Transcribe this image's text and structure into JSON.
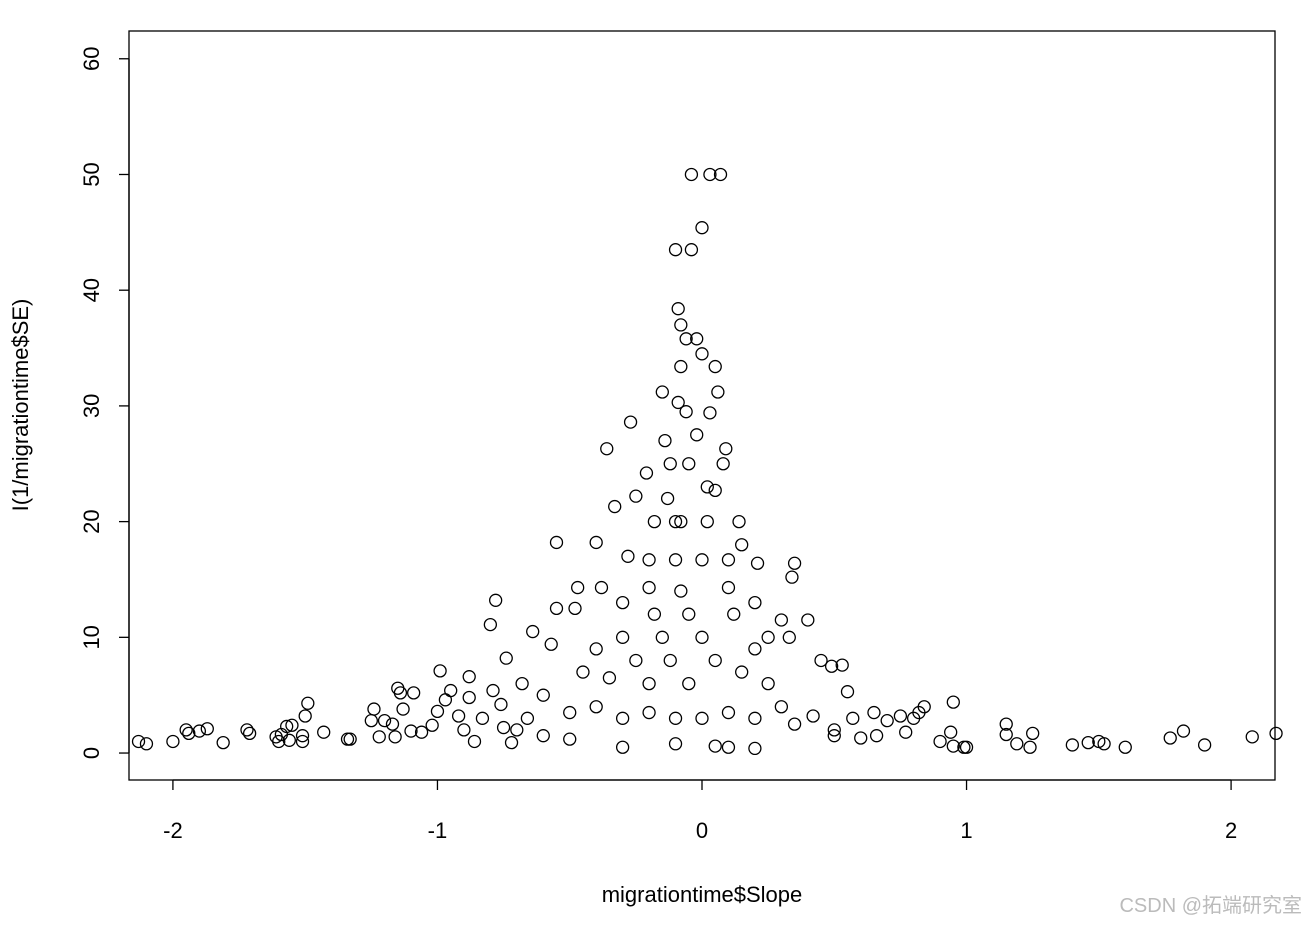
{
  "chart_data": {
    "type": "scatter",
    "x_label": "migrationtime$Slope",
    "y_label": "I(1/migrationtime$SE)",
    "watermark": "CSDN @拓端研究室",
    "color": "#000000",
    "xlim": [
      -2.166,
      2.166
    ],
    "ylim": [
      -2.33,
      62.4
    ],
    "xticks": [
      -2,
      -1,
      0,
      1,
      2
    ],
    "yticks": [
      0,
      10,
      20,
      30,
      40,
      50,
      60
    ],
    "x": [
      -2.13,
      -2.1,
      -2.0,
      -1.95,
      -1.94,
      -1.9,
      -1.87,
      -1.81,
      -1.72,
      -1.71,
      -1.61,
      -1.6,
      -1.59,
      -1.57,
      -1.56,
      -1.55,
      -1.51,
      -1.51,
      -1.5,
      -1.49,
      -1.43,
      -1.34,
      -1.33,
      -1.25,
      -1.24,
      -1.22,
      -1.2,
      -1.17,
      -1.16,
      -1.15,
      -1.14,
      -1.13,
      -1.1,
      -1.09,
      -1.06,
      -1.02,
      -1.0,
      -0.99,
      -0.97,
      -0.95,
      -0.92,
      -0.9,
      -0.88,
      -0.88,
      -0.86,
      -0.83,
      -0.8,
      -0.79,
      -0.78,
      -0.76,
      -0.75,
      -0.74,
      -0.72,
      0.7,
      0.75,
      0.77,
      0.8,
      0.82,
      0.84,
      0.9,
      0.94,
      0.95,
      0.95,
      0.99,
      1.0,
      1.15,
      1.15,
      1.19,
      1.24,
      1.25,
      1.4,
      1.46,
      1.5,
      1.52,
      1.6,
      1.77,
      1.82,
      1.9,
      2.08,
      2.17,
      -0.04,
      0.03,
      0.07,
      0.0,
      -0.1,
      -0.04,
      -0.09,
      -0.08,
      -0.06,
      -0.02,
      0.0,
      -0.08,
      0.05,
      0.06,
      -0.15,
      -0.09,
      0.03,
      -0.27,
      -0.36,
      0.09,
      0.08,
      -0.12,
      -0.05,
      -0.21,
      0.05,
      -0.25,
      -0.33,
      -0.1,
      0.14,
      -0.55,
      -0.4,
      0.21,
      0.35,
      0.34,
      -0.38,
      -0.47,
      -0.2,
      0.1,
      0.3,
      0.4,
      0.33,
      -0.48,
      -0.55,
      -0.64,
      -0.57,
      -0.3,
      -0.15,
      0,
      0.2,
      0.45,
      0.49,
      0.53,
      0.55,
      0.57,
      0.6,
      0.66,
      0.65,
      0.42,
      0.3,
      0.25,
      0.15,
      -0.05,
      -0.2,
      -0.35,
      -0.45,
      -0.6,
      -0.68,
      -0.66,
      -0.5,
      -0.4,
      -0.3,
      -0.2,
      -0.1,
      0,
      0.1,
      0.2,
      0.35,
      0.5,
      -0.7,
      -0.6,
      -0.5,
      -0.3,
      -0.1,
      0.05,
      0.1,
      0.2,
      0.5,
      -0.25,
      -0.12,
      0.05,
      -0.05,
      -0.18,
      0.12,
      -0.1,
      0,
      -0.2,
      0.1,
      -0.08,
      -0.18,
      0.02,
      -0.14,
      -0.02,
      -0.06,
      -0.13,
      0.02,
      -0.3,
      0.2,
      -0.4,
      0.25,
      -0.08,
      -0.28,
      0.15
    ],
    "values": [
      1.0,
      0.8,
      1.0,
      2.0,
      1.7,
      1.9,
      2.1,
      0.9,
      2.0,
      1.7,
      1.4,
      1.0,
      1.6,
      2.3,
      1.1,
      2.4,
      1.0,
      1.5,
      3.2,
      4.3,
      1.8,
      1.2,
      1.2,
      2.8,
      3.8,
      1.4,
      2.8,
      2.5,
      1.4,
      5.6,
      5.2,
      3.8,
      1.9,
      5.2,
      1.8,
      2.4,
      3.6,
      7.1,
      4.6,
      5.4,
      3.2,
      2.0,
      6.6,
      4.8,
      1.0,
      3.0,
      11.1,
      5.4,
      13.2,
      4.2,
      2.2,
      8.2,
      0.9,
      2.8,
      3.2,
      1.8,
      3.0,
      3.5,
      4.0,
      1.0,
      1.8,
      4.4,
      0.6,
      0.5,
      0.5,
      2.5,
      1.6,
      0.8,
      0.5,
      1.7,
      0.7,
      0.9,
      1.0,
      0.8,
      0.5,
      1.3,
      1.9,
      0.7,
      1.4,
      1.7,
      50,
      50,
      50,
      45.4,
      43.5,
      43.5,
      38.4,
      37,
      35.8,
      35.8,
      34.5,
      33.4,
      33.4,
      31.2,
      31.2,
      30.3,
      29.4,
      28.6,
      26.3,
      26.3,
      25,
      25,
      25,
      24.2,
      22.7,
      22.2,
      21.3,
      20,
      20,
      18.2,
      18.2,
      16.4,
      16.4,
      15.2,
      14.3,
      14.3,
      14.3,
      14.3,
      11.5,
      11.5,
      10,
      12.5,
      12.5,
      10.5,
      9.4,
      10,
      10,
      10,
      9,
      8,
      7.5,
      7.6,
      5.3,
      3,
      1.3,
      1.5,
      3.5,
      3.2,
      4,
      6,
      7,
      6,
      6,
      6.5,
      7,
      5,
      6,
      3,
      3.5,
      4,
      3,
      3.5,
      3,
      3,
      3.5,
      3,
      2.5,
      2,
      2,
      1.5,
      1.2,
      0.5,
      0.8,
      0.6,
      0.5,
      0.4,
      1.5,
      8,
      8,
      8,
      12,
      12,
      12,
      16.7,
      16.7,
      16.7,
      16.7,
      20,
      20,
      20,
      27,
      27.5,
      29.5,
      22,
      23,
      13,
      13,
      9,
      10,
      14,
      17,
      18
    ]
  }
}
